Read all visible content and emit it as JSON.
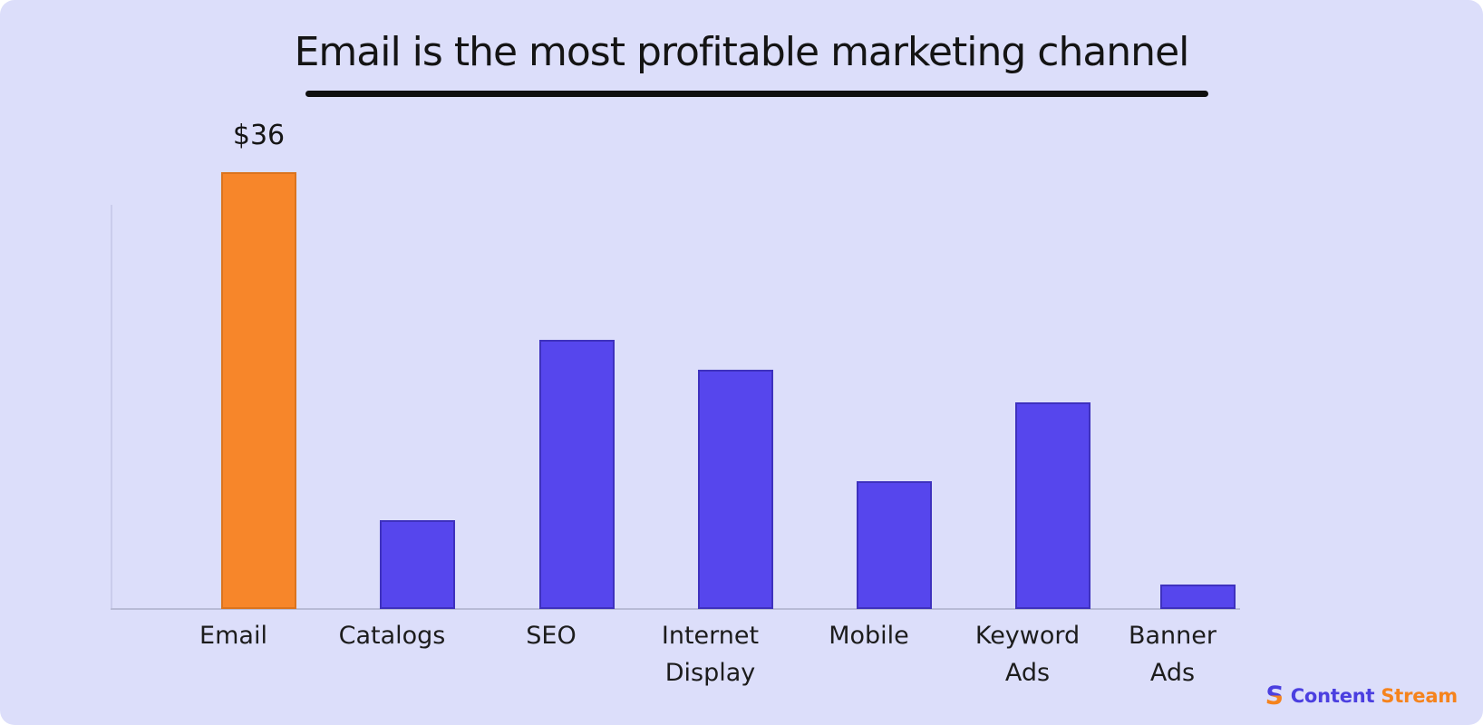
{
  "chart_data": {
    "type": "bar",
    "title": "Email is the most profitable marketing channel",
    "categories": [
      "Email",
      "Catalogs",
      "SEO",
      "Internet Display",
      "Mobile",
      "Keyword Ads",
      "Banner Ads"
    ],
    "category_lines": [
      [
        "Email"
      ],
      [
        "Catalogs"
      ],
      [
        "SEO"
      ],
      [
        "Internet",
        "Display"
      ],
      [
        "Mobile"
      ],
      [
        "Keyword",
        "Ads"
      ],
      [
        "Banner",
        "Ads"
      ]
    ],
    "values": [
      36,
      7.3,
      22.2,
      19.7,
      10.5,
      17,
      2
    ],
    "data_labels": [
      "$36",
      "",
      "",
      "",
      "",
      "",
      ""
    ],
    "highlight_index": 0,
    "xlabel": "",
    "ylabel": "",
    "ylim": [
      0,
      36
    ],
    "grid": false,
    "legend": "none",
    "axis_tick_labels_visible": false
  },
  "colors": {
    "background": "#dcdefa",
    "bar": "#5646ed",
    "highlight_bar": "#f7862a",
    "title_text": "#141414",
    "title_underline": "#0f0f0f",
    "axis_line": "#b8bbd6",
    "label_text": "#1c1c1c"
  },
  "logo": {
    "icon_glyph": "S",
    "word1": "Content",
    "word2": "Stream",
    "word1_color": "#4b3fe0",
    "word2_color": "#f5831d"
  }
}
